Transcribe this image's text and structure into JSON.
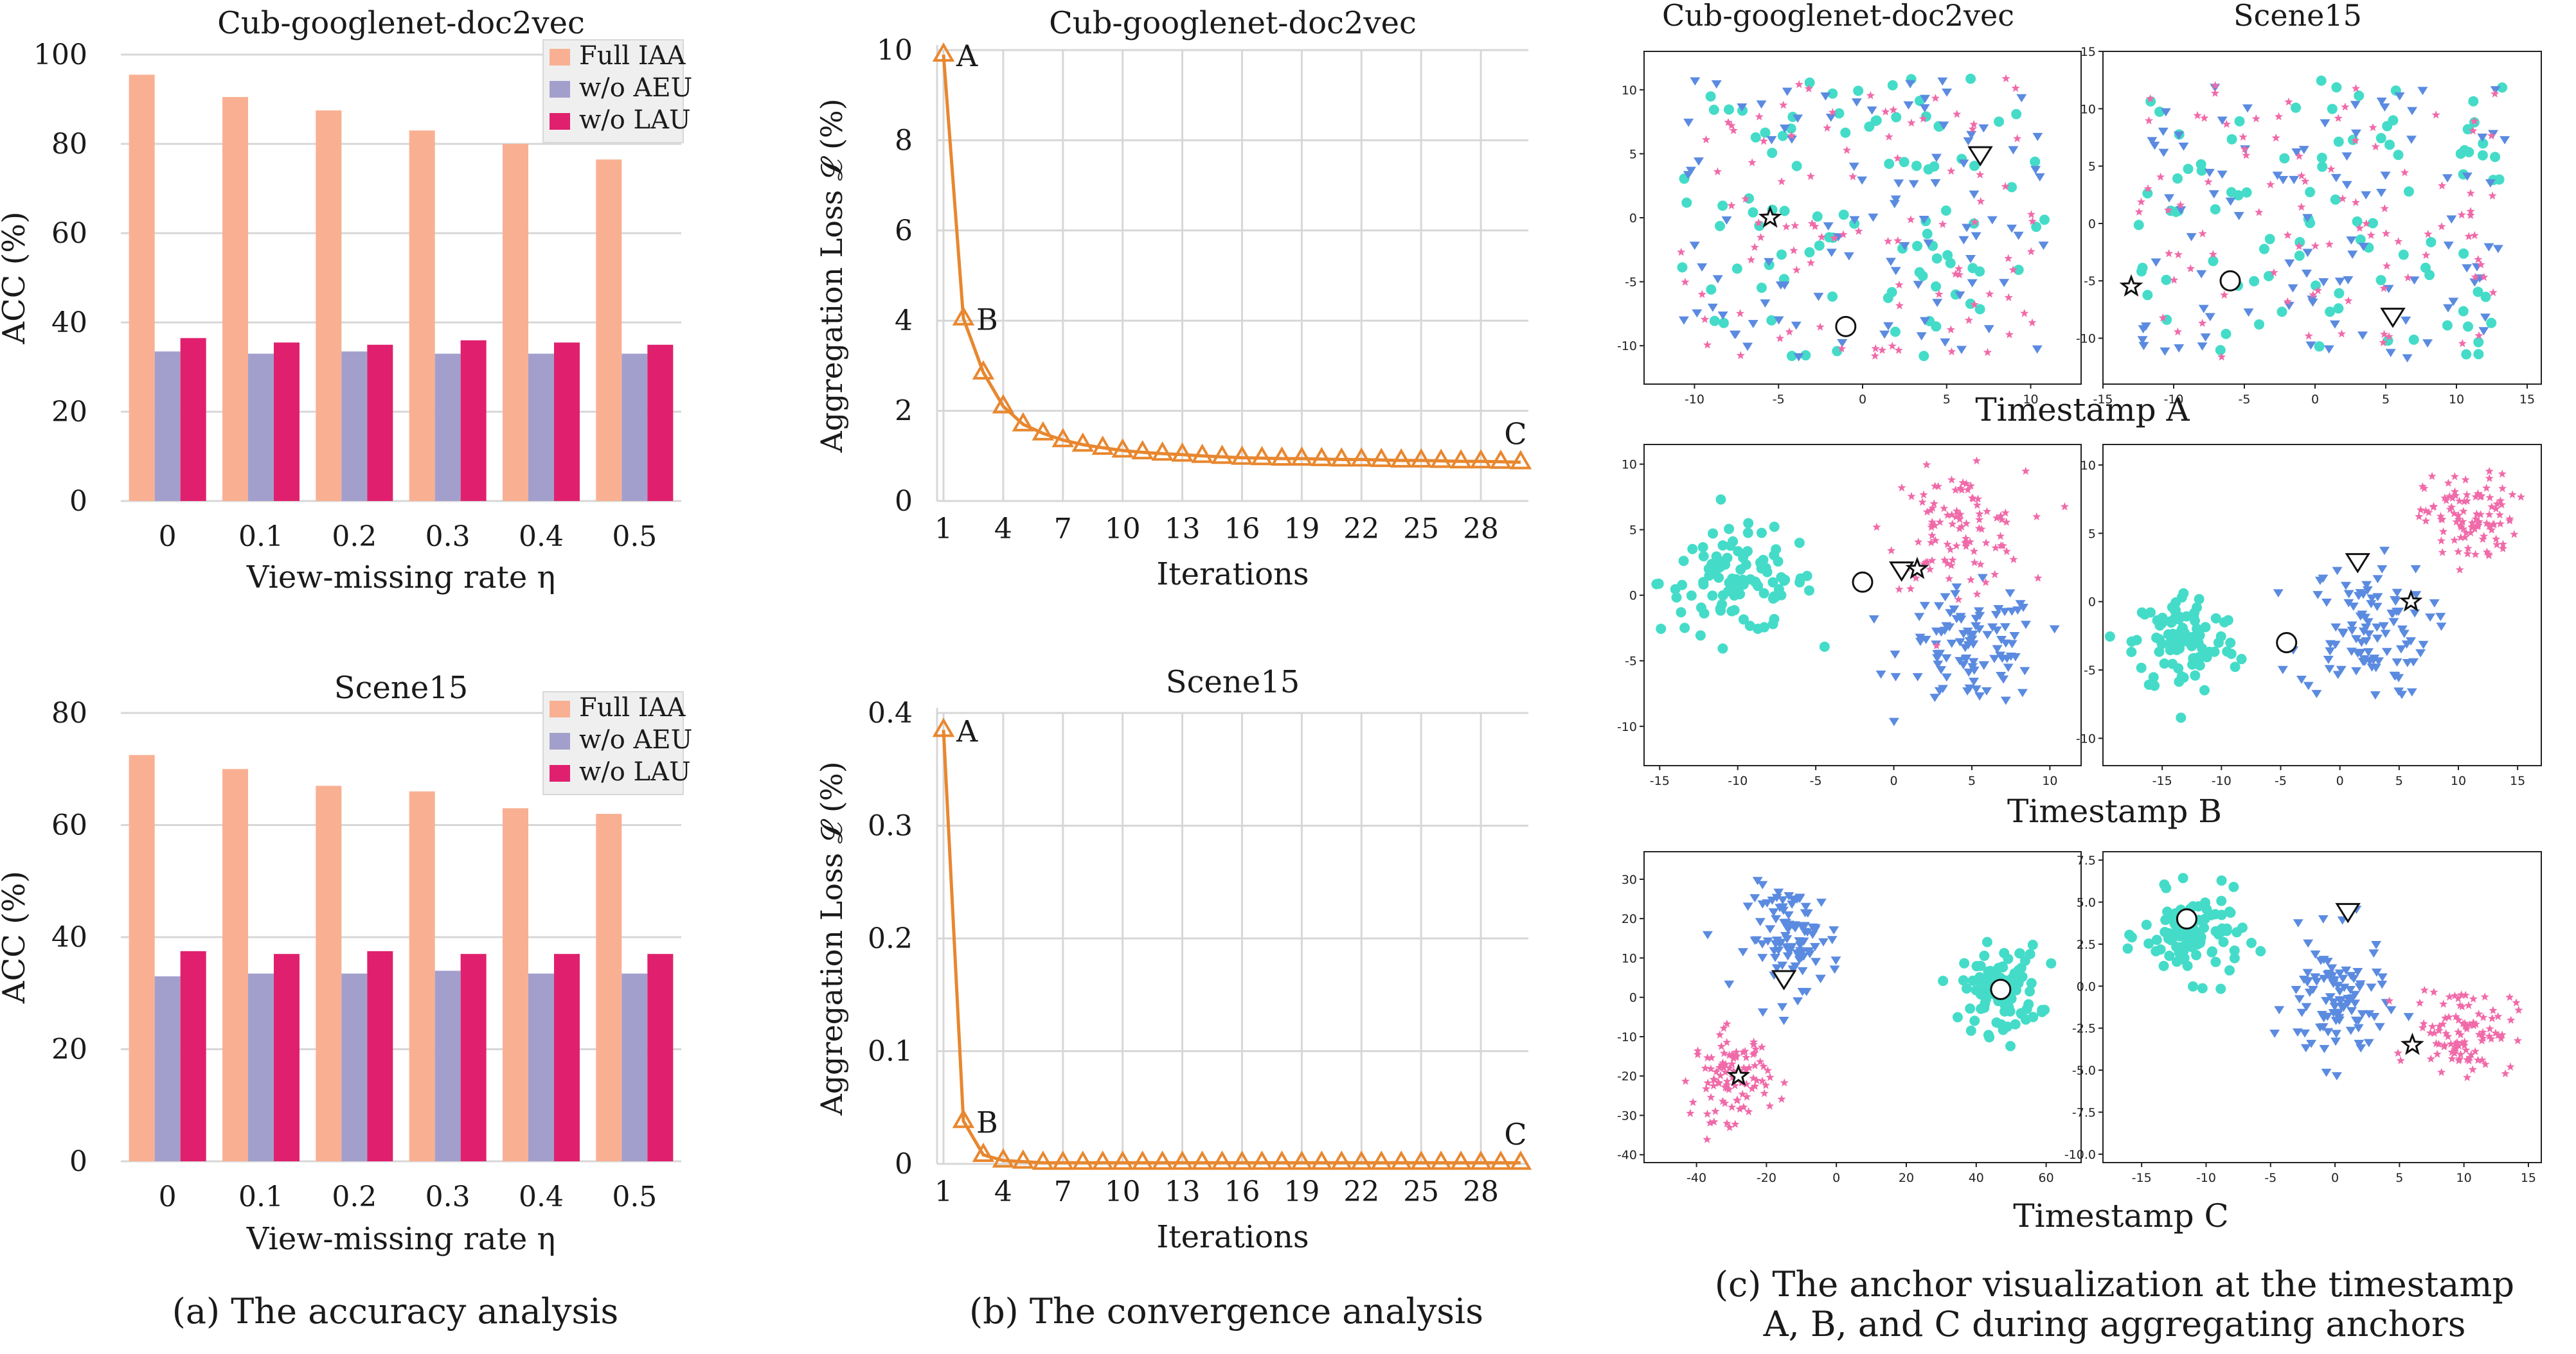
{
  "captions": {
    "a": "(a) The accuracy analysis",
    "b": "(b) The convergence analysis",
    "c_line1": "(c) The anchor visualization at the timestamp",
    "c_line2": "A, B, and C during aggregating anchors"
  },
  "colors": {
    "full_iaa": "#f9b092",
    "wo_aeu": "#a39fcc",
    "wo_lau": "#e0206e",
    "loss_line": "#e8872f",
    "cls_circle": "#44dcc8",
    "cls_triangle": "#5b8be0",
    "cls_star": "#f06aa9",
    "grid": "#d7d7d7"
  },
  "chart_data": [
    {
      "id": "acc_cub",
      "type": "bar",
      "title": "Cub-googlenet-doc2vec",
      "xlabel": "View-missing rate η",
      "ylabel": "ACC (%)",
      "categories": [
        "0",
        "0.1",
        "0.2",
        "0.3",
        "0.4",
        "0.5"
      ],
      "ylim": [
        0,
        100
      ],
      "yticks": [
        "0",
        "20",
        "40",
        "60",
        "80",
        "100"
      ],
      "legend": "top-right",
      "series": [
        {
          "name": "Full IAA",
          "values": [
            95.5,
            90.5,
            87.5,
            83,
            80,
            76.5
          ]
        },
        {
          "name": "w/o AEU",
          "values": [
            33.5,
            33,
            33.5,
            33,
            33,
            33
          ]
        },
        {
          "name": "w/o LAU",
          "values": [
            36.5,
            35.5,
            35,
            36,
            35.5,
            35
          ]
        }
      ]
    },
    {
      "id": "acc_scene",
      "type": "bar",
      "title": "Scene15",
      "xlabel": "View-missing rate η",
      "ylabel": "ACC (%)",
      "categories": [
        "0",
        "0.1",
        "0.2",
        "0.3",
        "0.4",
        "0.5"
      ],
      "ylim": [
        0,
        80
      ],
      "yticks": [
        "0",
        "20",
        "40",
        "60",
        "80"
      ],
      "legend": "top-right",
      "series": [
        {
          "name": "Full IAA",
          "values": [
            72.5,
            70,
            67,
            66,
            63,
            62
          ]
        },
        {
          "name": "w/o AEU",
          "values": [
            33,
            33.5,
            33.5,
            34,
            33.5,
            33.5
          ]
        },
        {
          "name": "w/o LAU",
          "values": [
            37.5,
            37,
            37.5,
            37,
            37,
            37
          ]
        }
      ]
    },
    {
      "id": "loss_cub",
      "type": "line",
      "title": "Cub-googlenet-doc2vec",
      "xlabel": "Iterations",
      "ylabel": "Aggregation Loss 𝓛 (%)",
      "xlim": [
        1,
        30
      ],
      "ylim": [
        0,
        10
      ],
      "xticks": [
        "1",
        "4",
        "7",
        "10",
        "13",
        "16",
        "19",
        "22",
        "25",
        "28"
      ],
      "yticks": [
        "0",
        "2",
        "4",
        "6",
        "8",
        "10"
      ],
      "x": [
        1,
        2,
        3,
        4,
        5,
        6,
        7,
        8,
        9,
        10,
        11,
        12,
        13,
        14,
        15,
        16,
        17,
        18,
        19,
        20,
        21,
        22,
        23,
        24,
        25,
        26,
        27,
        28,
        29,
        30
      ],
      "values": [
        9.9,
        4.05,
        2.85,
        2.1,
        1.7,
        1.5,
        1.35,
        1.25,
        1.18,
        1.12,
        1.08,
        1.05,
        1.03,
        1.0,
        0.98,
        0.96,
        0.95,
        0.94,
        0.94,
        0.93,
        0.92,
        0.92,
        0.91,
        0.9,
        0.9,
        0.89,
        0.88,
        0.88,
        0.87,
        0.86
      ],
      "annotations": [
        {
          "text": "A",
          "x": 1
        },
        {
          "text": "B",
          "x": 2
        },
        {
          "text": "C",
          "x": 30
        }
      ]
    },
    {
      "id": "loss_scene",
      "type": "line",
      "title": "Scene15",
      "xlabel": "Iterations",
      "ylabel": "Aggregation Loss 𝓛 (%)",
      "xlim": [
        1,
        30
      ],
      "ylim": [
        0,
        0.4
      ],
      "xticks": [
        "1",
        "4",
        "7",
        "10",
        "13",
        "16",
        "19",
        "22",
        "25",
        "28"
      ],
      "yticks": [
        "0",
        "0.1",
        "0.2",
        "0.3",
        "0.4"
      ],
      "x": [
        1,
        2,
        3,
        4,
        5,
        6,
        7,
        8,
        9,
        10,
        11,
        12,
        13,
        14,
        15,
        16,
        17,
        18,
        19,
        20,
        21,
        22,
        23,
        24,
        25,
        26,
        27,
        28,
        29,
        30
      ],
      "values": [
        0.385,
        0.038,
        0.008,
        0.003,
        0.002,
        0.001,
        0.001,
        0.001,
        0.001,
        0.001,
        0.001,
        0.001,
        0.001,
        0.001,
        0.001,
        0.001,
        0.001,
        0.001,
        0.001,
        0.001,
        0.001,
        0.001,
        0.001,
        0.001,
        0.001,
        0.001,
        0.001,
        0.001,
        0.001,
        0.001
      ],
      "annotations": [
        {
          "text": "A",
          "x": 1
        },
        {
          "text": "B",
          "x": 2
        },
        {
          "text": "C",
          "x": 30
        }
      ]
    }
  ],
  "scatter_panels": {
    "col_titles": [
      "Cub-googlenet-doc2vec",
      "Scene15"
    ],
    "row_labels": [
      "Timestamp A",
      "Timestamp B",
      "Timestamp C"
    ],
    "panels": [
      {
        "id": "A_cub",
        "type": "scatter",
        "xlim": [
          -13,
          13
        ],
        "ylim": [
          -13,
          13
        ],
        "xticks": [
          "-10",
          "-5",
          "0",
          "5",
          "10"
        ],
        "yticks": [
          "-10",
          "-5",
          "0",
          "5",
          "10"
        ],
        "anchors": {
          "circle": [
            -1,
            -8.5
          ],
          "triangle": [
            7,
            5
          ],
          "star": [
            -5.5,
            0
          ]
        },
        "mixed": true
      },
      {
        "id": "A_scene",
        "type": "scatter",
        "xlim": [
          -15,
          16
        ],
        "ylim": [
          -14,
          15
        ],
        "xticks": [
          "-15",
          "-10",
          "-5",
          "0",
          "5",
          "10",
          "15"
        ],
        "yticks": [
          "-10",
          "-5",
          "0",
          "5",
          "10",
          "15"
        ],
        "anchors": {
          "circle": [
            -6,
            -5
          ],
          "triangle": [
            5.5,
            -8
          ],
          "star": [
            -13,
            -5.5
          ]
        },
        "mixed": true
      },
      {
        "id": "B_cub",
        "type": "scatter",
        "xlim": [
          -16,
          12
        ],
        "ylim": [
          -13,
          11.5
        ],
        "xticks": [
          "-15",
          "-10",
          "-5",
          "0",
          "5",
          "10"
        ],
        "yticks": [
          "-10",
          "-5",
          "0",
          "5",
          "10"
        ],
        "anchors": {
          "circle": [
            -2,
            1
          ],
          "triangle": [
            0.5,
            2
          ],
          "star": [
            1.5,
            2
          ]
        },
        "clusters": {
          "circle": [
            -10,
            1,
            4.5,
            3.5
          ],
          "star": [
            4,
            5,
            4,
            4
          ],
          "triangle": [
            5,
            -4,
            4,
            4
          ]
        }
      },
      {
        "id": "B_scene",
        "type": "scatter",
        "xlim": [
          -20,
          17
        ],
        "ylim": [
          -12,
          11.5
        ],
        "xticks": [
          "-15",
          "-10",
          "-5",
          "0",
          "5",
          "10",
          "15"
        ],
        "yticks": [
          "-10",
          "-5",
          "0",
          "5",
          "10"
        ],
        "anchors": {
          "circle": [
            -4.5,
            -3
          ],
          "triangle": [
            1.5,
            3
          ],
          "star": [
            6,
            0
          ]
        },
        "clusters": {
          "circle": [
            -13,
            -3,
            4,
            3.5
          ],
          "star": [
            11,
            6,
            3.5,
            3
          ],
          "triangle": [
            2,
            -2,
            5,
            4.5
          ]
        }
      },
      {
        "id": "C_cub",
        "type": "scatter",
        "xlim": [
          -55,
          70
        ],
        "ylim": [
          -42,
          37
        ],
        "xticks": [
          "-40",
          "-20",
          "0",
          "20",
          "40",
          "60"
        ],
        "yticks": [
          "-40",
          "-30",
          "-20",
          "-10",
          "0",
          "10",
          "20",
          "30"
        ],
        "anchors": {
          "circle": [
            47,
            2
          ],
          "triangle": [
            -15,
            5
          ],
          "star": [
            -28,
            -20
          ]
        },
        "clusters": {
          "circle": [
            47,
            2,
            10,
            10
          ],
          "star": [
            -30,
            -20,
            10,
            10
          ],
          "triangle": [
            -12,
            15,
            12,
            12
          ]
        }
      },
      {
        "id": "C_scene",
        "type": "scatter",
        "xlim": [
          -18,
          16
        ],
        "ylim": [
          -10.5,
          8
        ],
        "xticks": [
          "-15",
          "-10",
          "-5",
          "0",
          "5",
          "10",
          "15"
        ],
        "yticks": [
          "-10.0",
          "-7.5",
          "-5.0",
          "-2.5",
          "0.0",
          "2.5",
          "5.0",
          "7.5"
        ],
        "anchors": {
          "circle": [
            -11.5,
            4
          ],
          "triangle": [
            1,
            4.5
          ],
          "star": [
            6,
            -3.5
          ]
        },
        "clusters": {
          "circle": [
            -11,
            3,
            3.5,
            2.3
          ],
          "star": [
            10,
            -2.5,
            3.5,
            2.3
          ],
          "triangle": [
            0,
            -1,
            3.5,
            3.5
          ]
        }
      }
    ]
  }
}
